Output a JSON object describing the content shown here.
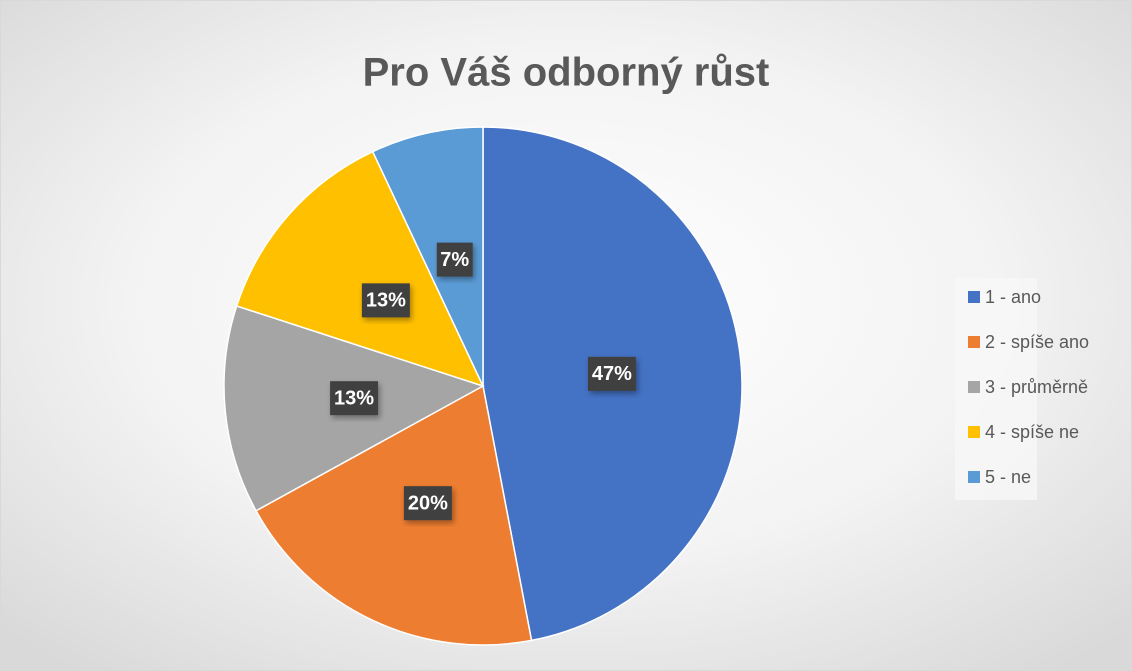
{
  "chart_data": {
    "type": "pie",
    "title": "Pro Váš odborný růst",
    "categories": [
      "1 - ano",
      "2 - spíše ano",
      "3 - průměrně",
      "4 - spíše ne",
      "5 - ne"
    ],
    "values": [
      47,
      20,
      13,
      13,
      7
    ],
    "value_labels": [
      "47%",
      "20%",
      "13%",
      "13%",
      "7%"
    ],
    "colors": [
      "#4472c4",
      "#ed7d31",
      "#a5a5a5",
      "#ffc000",
      "#5b9bd5"
    ],
    "legend": "right"
  }
}
